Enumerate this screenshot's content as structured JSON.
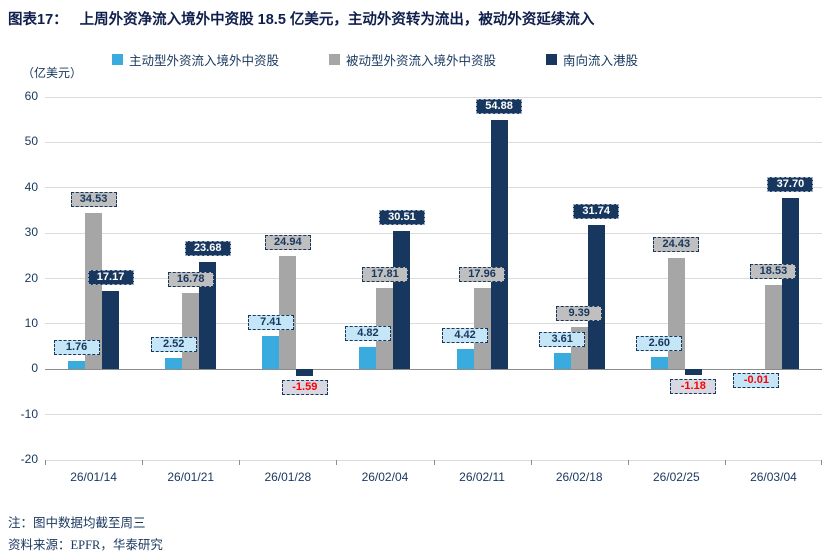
{
  "title": {
    "prefix": "图表17：",
    "text": "上周外资净流入境外中资股 18.5 亿美元，主动外资转为流出，被动外资延续流入"
  },
  "unit_label": "（亿美元）",
  "legend": [
    {
      "label": "主动型外资流入境外中资股",
      "color": "#3aabdf"
    },
    {
      "label": "被动型外资流入境外中资股",
      "color": "#a6a6a6"
    },
    {
      "label": "南向流入港股",
      "color": "#17375e"
    }
  ],
  "chart_data": {
    "type": "bar",
    "title": "上周外资净流入境外中资股 18.5 亿美元，主动外资转为流出，被动外资延续流入",
    "ylabel": "（亿美元）",
    "ylim": [
      -20,
      60
    ],
    "ytick_step": 10,
    "grid": "horizontal",
    "legend_position": "top",
    "negative_label_color": "#ff0000",
    "categories": [
      "26/01/14",
      "26/01/21",
      "26/01/28",
      "26/02/04",
      "26/02/11",
      "26/02/18",
      "26/02/25",
      "26/03/04"
    ],
    "series": [
      {
        "name": "主动型外资流入境外中资股",
        "color": "#3aabdf",
        "label_bg": "#c5e6f7",
        "label_color": "#17375e",
        "label_border": "#17375e",
        "negative_label_bg": "#c5e6f7",
        "values": [
          1.76,
          2.52,
          7.41,
          4.82,
          4.42,
          3.61,
          2.6,
          -0.01
        ],
        "labels": [
          "1.76",
          "2.52",
          "7.41",
          "4.82",
          "4.42",
          "3.61",
          "2.60",
          "-0.01"
        ]
      },
      {
        "name": "被动型外资流入境外中资股",
        "color": "#a6a6a6",
        "label_bg": "#bfbfbf",
        "label_color": "#17375e",
        "label_border": "#17375e",
        "negative_label_bg": "#bfbfbf",
        "values": [
          34.53,
          16.78,
          24.94,
          17.81,
          17.96,
          9.39,
          24.43,
          18.53
        ],
        "labels": [
          "34.53",
          "16.78",
          "24.94",
          "17.81",
          "17.96",
          "9.39",
          "24.43",
          "18.53"
        ]
      },
      {
        "name": "南向流入港股",
        "color": "#17375e",
        "label_bg": "#17375e",
        "label_color": "#ffffff",
        "label_border": "#9fb1c9",
        "negative_label_bg": "#d8d8e2",
        "values": [
          17.17,
          23.68,
          -1.59,
          30.51,
          54.88,
          31.74,
          -1.18,
          37.7
        ],
        "labels": [
          "17.17",
          "23.68",
          "-1.59",
          "30.51",
          "54.88",
          "31.74",
          "-1.18",
          "37.70"
        ]
      }
    ]
  },
  "notes": {
    "note": "注：图中数据均截至周三",
    "source": "资料来源：EPFR，华泰研究"
  }
}
